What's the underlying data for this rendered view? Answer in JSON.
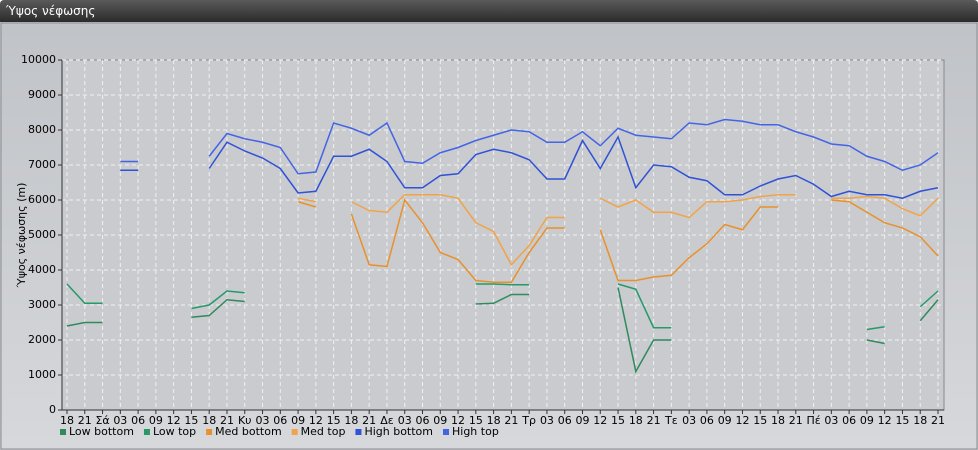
{
  "chart_data": {
    "type": "line",
    "title": "Ύψος νέφωσης",
    "y_label": "Ύψος νέφωσης (m)",
    "categories": [
      "18",
      "21",
      "Σά",
      "03",
      "06",
      "09",
      "12",
      "15",
      "18",
      "21",
      "Κυ",
      "03",
      "06",
      "09",
      "12",
      "15",
      "18",
      "21",
      "Δε",
      "03",
      "06",
      "09",
      "12",
      "15",
      "18",
      "21",
      "Τρ",
      "03",
      "06",
      "09",
      "12",
      "15",
      "18",
      "21",
      "Τε",
      "03",
      "06",
      "09",
      "12",
      "15",
      "18",
      "21",
      "Πέ",
      "03",
      "06",
      "09",
      "12",
      "15",
      "18",
      "21"
    ],
    "ylim": [
      0,
      10000
    ],
    "yticks": [
      0,
      1000,
      2000,
      3000,
      4000,
      5000,
      6000,
      7000,
      8000,
      9000,
      10000
    ],
    "grid": true,
    "legend": "bottom-left",
    "series": [
      {
        "name": "Low bottom",
        "color": "#2f8a5c",
        "values": [
          2400,
          2500,
          2500,
          null,
          null,
          null,
          null,
          2650,
          2700,
          3150,
          3100,
          null,
          null,
          null,
          null,
          null,
          null,
          null,
          null,
          null,
          null,
          null,
          null,
          3030,
          3050,
          3300,
          3300,
          null,
          null,
          null,
          null,
          3500,
          1100,
          2000,
          2000,
          null,
          null,
          null,
          null,
          null,
          null,
          null,
          null,
          null,
          null,
          2000,
          1900,
          null,
          2550,
          3150
        ]
      },
      {
        "name": "Low top",
        "color": "#259a68",
        "values": [
          3600,
          3050,
          3050,
          null,
          null,
          null,
          null,
          2900,
          3000,
          3400,
          3350,
          null,
          null,
          null,
          null,
          null,
          null,
          null,
          null,
          null,
          null,
          null,
          null,
          3600,
          3600,
          3580,
          3580,
          null,
          null,
          null,
          null,
          3600,
          3450,
          2350,
          2350,
          null,
          null,
          null,
          null,
          null,
          null,
          null,
          null,
          null,
          null,
          2300,
          2380,
          null,
          2950,
          3400
        ]
      },
      {
        "name": "Med bottom",
        "color": "#e8912c",
        "values": [
          null,
          null,
          null,
          null,
          null,
          null,
          null,
          null,
          null,
          null,
          null,
          null,
          null,
          5950,
          5800,
          null,
          5600,
          4150,
          4100,
          6000,
          5350,
          4500,
          4300,
          3700,
          3650,
          3650,
          4500,
          5200,
          5200,
          null,
          5150,
          3700,
          3700,
          3800,
          3850,
          4350,
          4750,
          5300,
          5150,
          5800,
          5800,
          null,
          null,
          6000,
          5950,
          5650,
          5350,
          5200,
          4950,
          4400
        ]
      },
      {
        "name": "Med top",
        "color": "#f2a347",
        "values": [
          null,
          null,
          null,
          null,
          null,
          null,
          null,
          null,
          null,
          null,
          null,
          null,
          null,
          6050,
          5950,
          null,
          5950,
          5700,
          5650,
          6150,
          6150,
          6150,
          6050,
          5350,
          5100,
          4150,
          4700,
          5500,
          5500,
          null,
          6050,
          5800,
          6000,
          5650,
          5650,
          5500,
          5950,
          5950,
          6000,
          6100,
          6150,
          6150,
          null,
          6050,
          6050,
          6100,
          6050,
          5750,
          5550,
          6050
        ]
      },
      {
        "name": "High bottom",
        "color": "#2f52d6",
        "values": [
          null,
          null,
          null,
          6850,
          6850,
          null,
          null,
          null,
          6900,
          7650,
          7400,
          7200,
          6900,
          6200,
          6250,
          7250,
          7250,
          7450,
          7100,
          6350,
          6350,
          6700,
          6750,
          7300,
          7450,
          7350,
          7150,
          6600,
          6600,
          7700,
          6900,
          7800,
          6350,
          7000,
          6950,
          6650,
          6550,
          6150,
          6150,
          6400,
          6600,
          6700,
          6450,
          6100,
          6250,
          6150,
          6150,
          6050,
          6250,
          6350
        ]
      },
      {
        "name": "High top",
        "color": "#4464e6",
        "values": [
          null,
          null,
          null,
          7100,
          7100,
          null,
          null,
          null,
          7250,
          7900,
          7750,
          7650,
          7500,
          6750,
          6800,
          8200,
          8050,
          7850,
          8200,
          7100,
          7050,
          7350,
          7500,
          7700,
          7850,
          8000,
          7950,
          7650,
          7650,
          7950,
          7550,
          8050,
          7850,
          7800,
          7750,
          8200,
          8150,
          8300,
          8250,
          8150,
          8150,
          7950,
          7800,
          7600,
          7550,
          7250,
          7100,
          6850,
          7000,
          7350
        ]
      }
    ]
  }
}
